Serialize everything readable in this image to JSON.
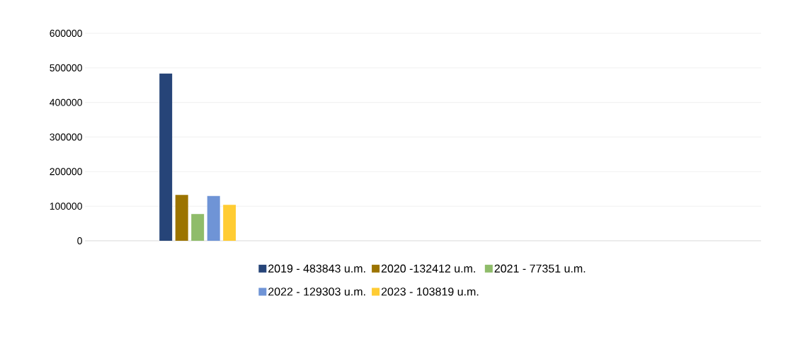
{
  "chart_data": {
    "type": "bar",
    "categories": [
      null,
      null,
      null
    ],
    "series": [
      {
        "name": "2019 - 483843 u.m.",
        "color": "#264478",
        "values": [
          483843,
          null,
          null
        ]
      },
      {
        "name": "2020 -132412 u.m.",
        "color": "#9c7400",
        "values": [
          132412,
          null,
          null
        ]
      },
      {
        "name": "2021 - 77351 u.m.",
        "color": "#8fbc6a",
        "values": [
          77351,
          null,
          null
        ]
      },
      {
        "name": "2022 - 129303 u.m.",
        "color": "#6f94d6",
        "values": [
          129303,
          null,
          null
        ]
      },
      {
        "name": "2023 - 103819 u.m.",
        "color": "#ffcc33",
        "values": [
          103819,
          null,
          null
        ]
      }
    ],
    "ylim": [
      0,
      600000
    ],
    "yticks": [
      0,
      100000,
      200000,
      300000,
      400000,
      500000,
      600000
    ],
    "grid": "y",
    "legend": "bottom"
  }
}
